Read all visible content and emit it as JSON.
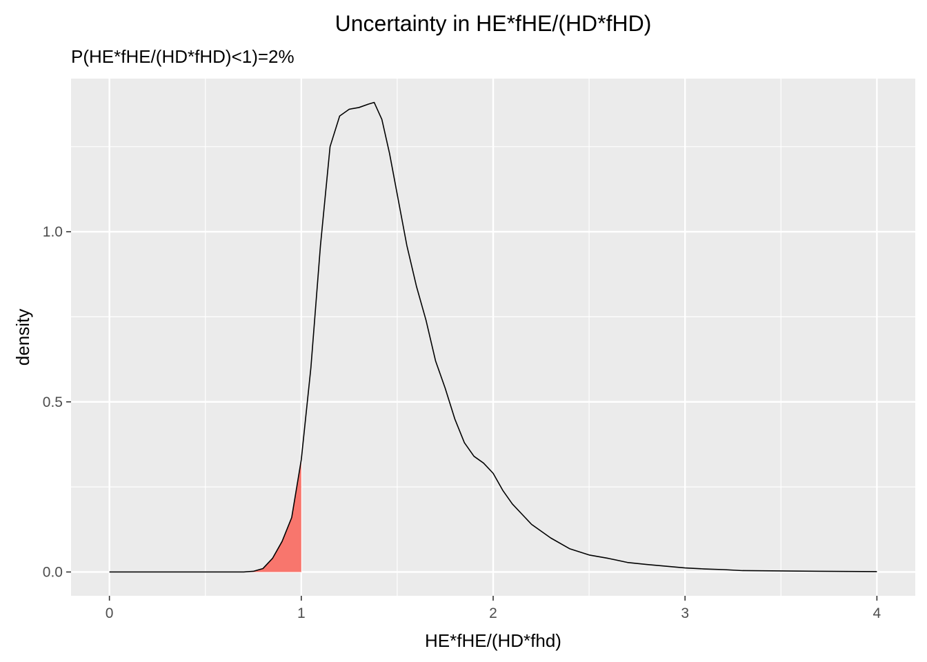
{
  "chart_data": {
    "type": "area",
    "title": "Uncertainty in HE*fHE/(HD*fHD)",
    "subtitle": "P(HE*fHE/(HD*fHD)<1)=2%",
    "xlabel": "HE*fHE/(HD*fhd)",
    "ylabel": "density",
    "xlim": [
      -0.2,
      4.2
    ],
    "ylim": [
      -0.07,
      1.45
    ],
    "x_ticks": [
      0,
      1,
      2,
      3,
      4
    ],
    "x_tick_labels": [
      "0",
      "1",
      "2",
      "3",
      "4"
    ],
    "y_ticks": [
      0.0,
      0.5,
      1.0
    ],
    "y_tick_labels": [
      "0.0",
      "0.5",
      "1.0"
    ],
    "grid": true,
    "shaded_region": {
      "x_from": 0.0,
      "x_to": 1.0,
      "fill_color": "#f8766d"
    },
    "curve_color": "#000000",
    "panel_color": "#ebebeb",
    "x": [
      0.0,
      0.5,
      0.7,
      0.75,
      0.8,
      0.85,
      0.9,
      0.95,
      1.0,
      1.05,
      1.1,
      1.15,
      1.2,
      1.25,
      1.3,
      1.35,
      1.38,
      1.42,
      1.46,
      1.5,
      1.55,
      1.6,
      1.65,
      1.7,
      1.75,
      1.8,
      1.85,
      1.9,
      1.95,
      2.0,
      2.05,
      2.1,
      2.2,
      2.3,
      2.4,
      2.5,
      2.6,
      2.7,
      2.8,
      2.9,
      3.0,
      3.1,
      3.2,
      3.3,
      3.5,
      3.7,
      4.0
    ],
    "y": [
      0.0,
      0.0,
      0.0,
      0.002,
      0.01,
      0.04,
      0.09,
      0.16,
      0.33,
      0.6,
      0.96,
      1.25,
      1.34,
      1.36,
      1.365,
      1.375,
      1.38,
      1.33,
      1.23,
      1.11,
      0.96,
      0.84,
      0.74,
      0.62,
      0.54,
      0.45,
      0.38,
      0.34,
      0.32,
      0.29,
      0.24,
      0.2,
      0.14,
      0.1,
      0.068,
      0.05,
      0.04,
      0.028,
      0.022,
      0.017,
      0.012,
      0.009,
      0.007,
      0.004,
      0.003,
      0.002,
      0.001
    ]
  }
}
